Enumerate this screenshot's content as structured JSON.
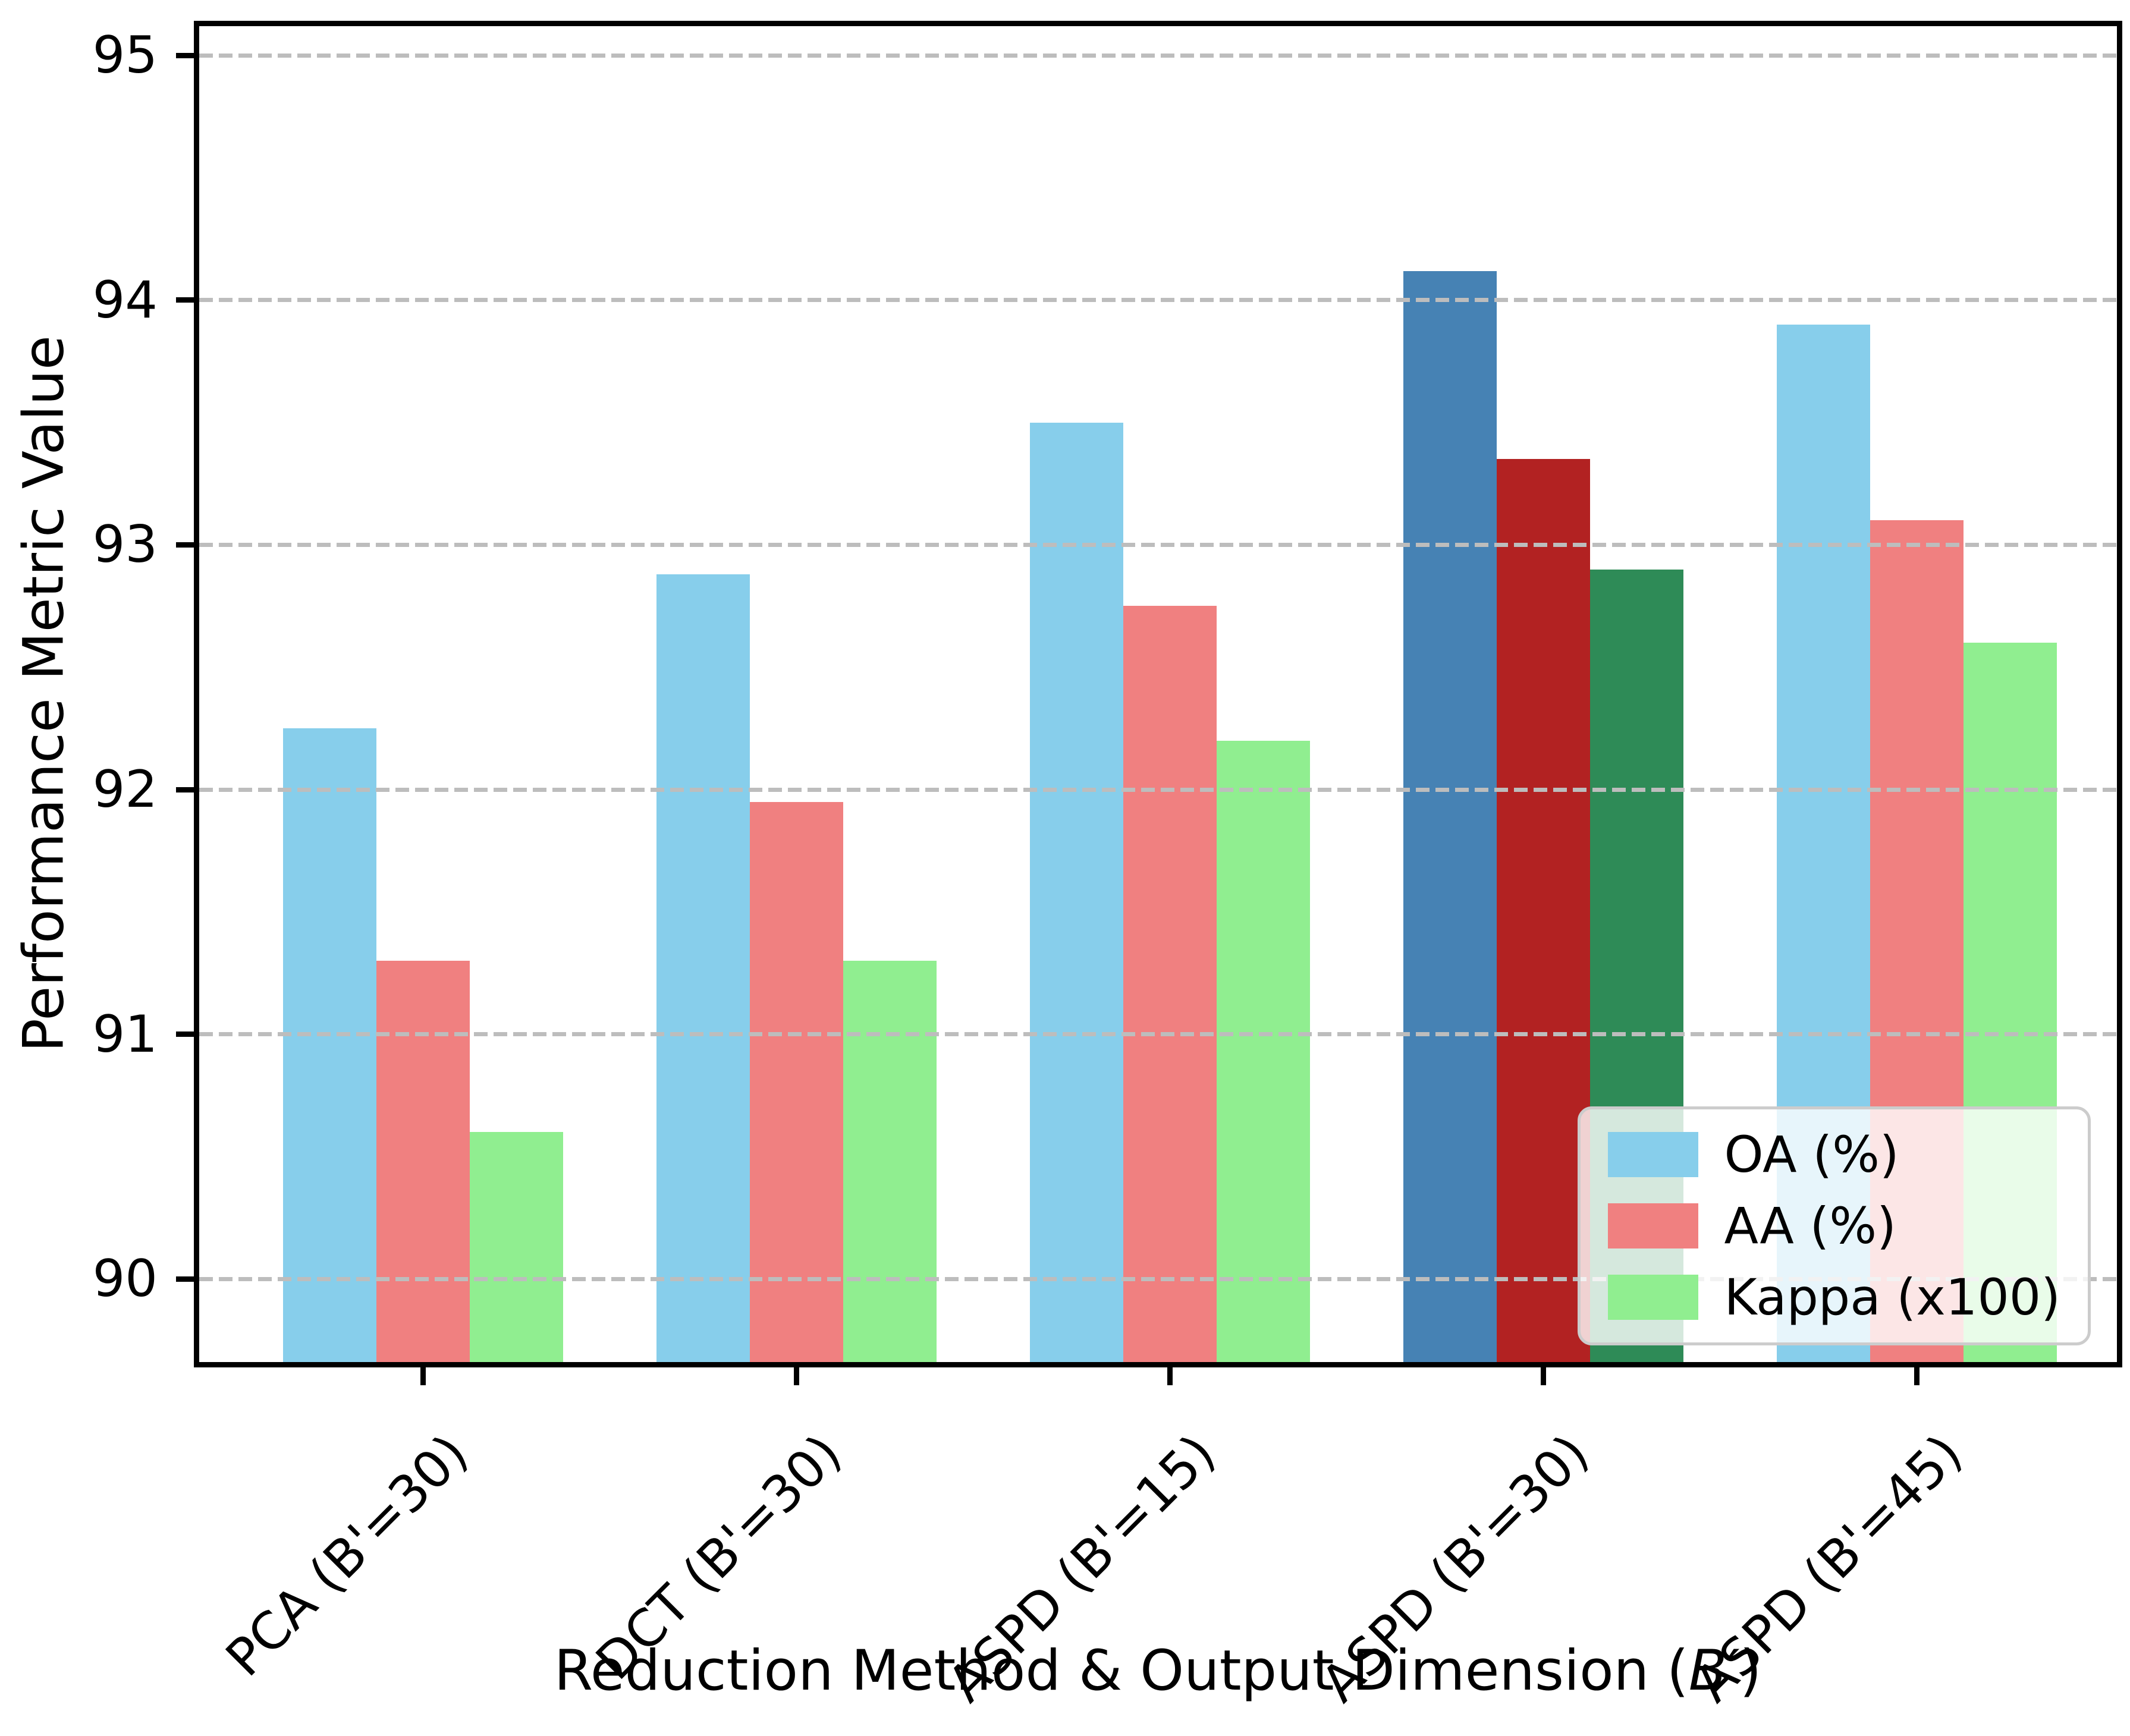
{
  "figure": {
    "ylabel": "Performance Metric Value",
    "xlabel_text": "Reduction Method & Output Dimension (",
    "xlabel_math": "B′",
    "xlabel_close": ")"
  },
  "chart_data": {
    "type": "bar",
    "xlabel": "Reduction Method & Output Dimension (B′)",
    "ylabel": "Performance Metric Value",
    "categories": [
      "PCA (B'=30)",
      "DCT (B'=30)",
      "ASPD (B'=15)",
      "ASPD (B'=30)",
      "ASPD (B'=45)"
    ],
    "series": [
      {
        "name": "OA (%)",
        "values": [
          92.25,
          92.88,
          93.5,
          94.12,
          93.9
        ],
        "color": "#87CEEB",
        "highlight_color": "#4682B4"
      },
      {
        "name": "AA (%)",
        "values": [
          91.3,
          91.95,
          92.75,
          93.35,
          93.1
        ],
        "color": "#F08080",
        "highlight_color": "#B22222"
      },
      {
        "name": "Kappa (x100)",
        "values": [
          90.6,
          91.3,
          92.2,
          92.9,
          92.6
        ],
        "color": "#90EE90",
        "highlight_color": "#2E8B57"
      }
    ],
    "highlighted_category_index": 3,
    "highlighted_category": "ASPD (B'=30)",
    "y_ticks": [
      90,
      91,
      92,
      93,
      94,
      95
    ],
    "ylim": [
      89.66,
      95.12
    ],
    "grid": "horizontal-dashed",
    "grid_color": "#bdbdbd",
    "legend_position": "lower right",
    "bar_edge": "none"
  }
}
